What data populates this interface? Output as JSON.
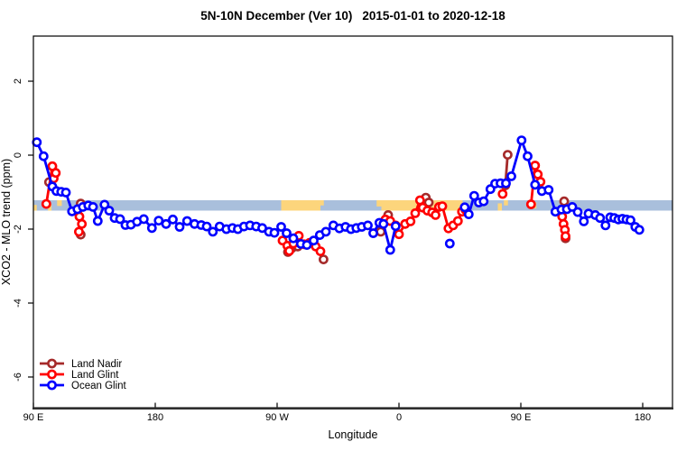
{
  "title": {
    "left": "5N-10N December (Ver 10)",
    "right": "2015-01-01 to 2020-12-18"
  },
  "axes": {
    "x": {
      "label": "Longitude",
      "ticks": [
        {
          "lon": 90,
          "label": "90 E"
        },
        {
          "lon": 180,
          "label": "180"
        },
        {
          "lon": 270,
          "label": "90 W"
        },
        {
          "lon": 360,
          "label": "0"
        },
        {
          "lon": 450,
          "label": "90 E"
        },
        {
          "lon": 540,
          "label": "180"
        }
      ]
    },
    "y": {
      "label": "XCO2 - MLO trend (ppm)",
      "ticks": [
        2,
        0,
        -2,
        -4,
        -6
      ]
    }
  },
  "legend": {
    "items": [
      "Land Nadir",
      "Land Glint",
      "Ocean Glint"
    ]
  },
  "chart_data": {
    "type": "line",
    "title": "5N-10N December (Ver 10)   2015-01-01 to 2020-12-18",
    "xlabel": "Longitude",
    "ylabel": "XCO2 - MLO trend (ppm)",
    "lon_range": [
      90,
      562
    ],
    "value_range": [
      -6.83,
      3.22
    ],
    "grid": false,
    "legend_position": "bottom-left-inside",
    "band": {
      "description": "land-ocean strip",
      "v_top": -1.22,
      "v_bottom": -1.5,
      "ocean_color": "#a9bfdc",
      "land_color": "#fcd57c",
      "land_patches": [
        {
          "from": 90,
          "to": 92.5,
          "top": 0.45,
          "bottom": 1
        },
        {
          "from": 100.8,
          "to": 103.4,
          "top": 0.35,
          "bottom": 1
        },
        {
          "from": 107.5,
          "to": 111,
          "top": 0,
          "bottom": 0.55
        },
        {
          "from": 124,
          "to": 125.6,
          "top": 0.1,
          "bottom": 0.6
        },
        {
          "from": 273,
          "to": 302,
          "top": 0,
          "bottom": 1
        },
        {
          "from": 302,
          "to": 304.5,
          "top": 0,
          "bottom": 0.5
        },
        {
          "from": 343.5,
          "to": 347,
          "top": 0,
          "bottom": 0.6
        },
        {
          "from": 347,
          "to": 407,
          "top": 0,
          "bottom": 1
        },
        {
          "from": 433,
          "to": 436,
          "top": 0.3,
          "bottom": 1
        },
        {
          "from": 437.5,
          "to": 440.5,
          "top": 0,
          "bottom": 0.5
        },
        {
          "from": 459.5,
          "to": 461.5,
          "top": 0.2,
          "bottom": 0.8
        }
      ]
    },
    "series": [
      {
        "name": "Land Nadir",
        "color": "#a52a2a",
        "segments": [
          [
            [
              101.5,
              -0.73
            ]
          ],
          [
            [
              124.9,
              -1.31
            ],
            [
              124.9,
              -2.15
            ]
          ],
          [
            [
              278,
              -2.62
            ],
            [
              281,
              -2.51
            ],
            [
              285.3,
              -2.47
            ]
          ],
          [
            [
              304.3,
              -2.82
            ]
          ],
          [
            [
              346.5,
              -2.07
            ],
            [
              352,
              -1.62
            ]
          ],
          [
            [
              376.5,
              -1.25
            ],
            [
              379.8,
              -1.15
            ],
            [
              382,
              -1.28
            ]
          ],
          [
            [
              438.5,
              -0.82
            ],
            [
              440.3,
              0.01
            ]
          ],
          [
            [
              482,
              -1.25
            ],
            [
              483,
              -2.25
            ]
          ]
        ]
      },
      {
        "name": "Land Glint",
        "color": "#ff0000",
        "segments": [
          [
            [
              99.5,
              -1.32
            ],
            [
              104,
              -0.3
            ],
            [
              105,
              -0.63
            ],
            [
              106.5,
              -0.48
            ]
          ],
          [
            [
              124,
              -1.66
            ],
            [
              125.8,
              -1.86
            ],
            [
              123.6,
              -2.07
            ]
          ],
          [
            [
              274,
              -2.31
            ],
            [
              277.5,
              -2.45
            ],
            [
              279,
              -2.59
            ],
            [
              282,
              -2.39
            ],
            [
              286,
              -2.18
            ],
            [
              290,
              -2.41
            ],
            [
              294,
              -2.37
            ],
            [
              298.5,
              -2.47
            ],
            [
              302,
              -2.6
            ]
          ],
          [
            [
              350,
              -1.74
            ],
            [
              353.5,
              -1.78
            ],
            [
              357.5,
              -1.9
            ],
            [
              360,
              -2.14
            ],
            [
              364.5,
              -1.86
            ],
            [
              368.5,
              -1.79
            ],
            [
              372,
              -1.57
            ],
            [
              375.5,
              -1.22
            ],
            [
              377.5,
              -1.42
            ],
            [
              381,
              -1.5
            ],
            [
              384.5,
              -1.55
            ],
            [
              387,
              -1.62
            ],
            [
              389.5,
              -1.4
            ],
            [
              392,
              -1.38
            ],
            [
              396.5,
              -1.98
            ],
            [
              400,
              -1.9
            ],
            [
              403.5,
              -1.78
            ],
            [
              406.5,
              -1.53
            ],
            [
              409,
              -1.47
            ]
          ],
          [
            [
              436.5,
              -1.05
            ]
          ],
          [
            [
              457.5,
              -1.33
            ],
            [
              460.5,
              -0.28
            ],
            [
              462.5,
              -0.52
            ],
            [
              464.5,
              -0.72
            ]
          ],
          [
            [
              480.5,
              -1.66
            ],
            [
              481.5,
              -1.86
            ],
            [
              482.5,
              -2.02
            ],
            [
              483,
              -2.19
            ]
          ]
        ]
      },
      {
        "name": "Ocean Glint",
        "color": "#0000ff",
        "segments": [
          [
            [
              92.5,
              0.35
            ],
            [
              97.5,
              -0.03
            ],
            [
              104,
              -0.85
            ],
            [
              107,
              -0.97
            ],
            [
              110.5,
              -0.99
            ],
            [
              114,
              -1.01
            ],
            [
              118.5,
              -1.52
            ],
            [
              122.5,
              -1.46
            ],
            [
              126.5,
              -1.4
            ],
            [
              130.5,
              -1.36
            ],
            [
              134,
              -1.4
            ],
            [
              137.5,
              -1.78
            ],
            [
              142.5,
              -1.34
            ],
            [
              146,
              -1.5
            ],
            [
              150,
              -1.7
            ],
            [
              154,
              -1.73
            ],
            [
              158,
              -1.89
            ],
            [
              162,
              -1.88
            ],
            [
              166.5,
              -1.8
            ],
            [
              171.5,
              -1.73
            ],
            [
              177.5,
              -1.97
            ],
            [
              182.5,
              -1.77
            ],
            [
              188,
              -1.86
            ],
            [
              193,
              -1.74
            ],
            [
              198,
              -1.94
            ],
            [
              203.5,
              -1.78
            ],
            [
              209,
              -1.86
            ],
            [
              214,
              -1.89
            ],
            [
              218,
              -1.93
            ],
            [
              222.5,
              -2.07
            ],
            [
              227.5,
              -1.93
            ],
            [
              232.5,
              -2.0
            ],
            [
              237,
              -1.97
            ],
            [
              241,
              -2.0
            ],
            [
              245.5,
              -1.93
            ],
            [
              250,
              -1.9
            ],
            [
              254.5,
              -1.93
            ],
            [
              259,
              -1.97
            ],
            [
              264,
              -2.07
            ],
            [
              268,
              -2.1
            ],
            [
              273,
              -1.94
            ],
            [
              277,
              -2.11
            ],
            [
              282,
              -2.25
            ],
            [
              287.5,
              -2.4
            ],
            [
              292,
              -2.43
            ],
            [
              297,
              -2.31
            ],
            [
              301.5,
              -2.16
            ],
            [
              306,
              -2.07
            ],
            [
              311.5,
              -1.9
            ],
            [
              316,
              -1.98
            ],
            [
              320.5,
              -1.94
            ],
            [
              324.5,
              -2.0
            ],
            [
              328.5,
              -1.97
            ],
            [
              332.5,
              -1.94
            ],
            [
              337,
              -1.9
            ],
            [
              341,
              -2.11
            ],
            [
              345.5,
              -1.83
            ],
            [
              348.5,
              -1.86
            ],
            [
              353.5,
              -2.56
            ],
            [
              357.5,
              -1.92
            ]
          ],
          [
            [
              397.5,
              -2.39
            ]
          ],
          [
            [
              408.5,
              -1.41
            ],
            [
              411.5,
              -1.6
            ],
            [
              415.5,
              -1.1
            ],
            [
              419,
              -1.28
            ],
            [
              422.5,
              -1.25
            ],
            [
              427.5,
              -0.92
            ],
            [
              431,
              -0.77
            ],
            [
              435,
              -0.76
            ],
            [
              439,
              -0.76
            ],
            [
              443,
              -0.57
            ],
            [
              450.5,
              0.4
            ],
            [
              455,
              -0.03
            ],
            [
              460.5,
              -0.8
            ],
            [
              465.5,
              -0.97
            ],
            [
              470.5,
              -0.94
            ],
            [
              475.5,
              -1.53
            ],
            [
              480,
              -1.47
            ],
            [
              484,
              -1.46
            ],
            [
              488,
              -1.4
            ],
            [
              492,
              -1.54
            ],
            [
              496.5,
              -1.79
            ],
            [
              500,
              -1.58
            ],
            [
              505,
              -1.62
            ],
            [
              508.5,
              -1.7
            ],
            [
              512.5,
              -1.9
            ],
            [
              516,
              -1.68
            ],
            [
              519,
              -1.7
            ],
            [
              522,
              -1.74
            ],
            [
              525,
              -1.72
            ],
            [
              528,
              -1.74
            ],
            [
              531,
              -1.76
            ],
            [
              534.5,
              -1.94
            ],
            [
              537.5,
              -2.02
            ]
          ]
        ]
      }
    ]
  }
}
